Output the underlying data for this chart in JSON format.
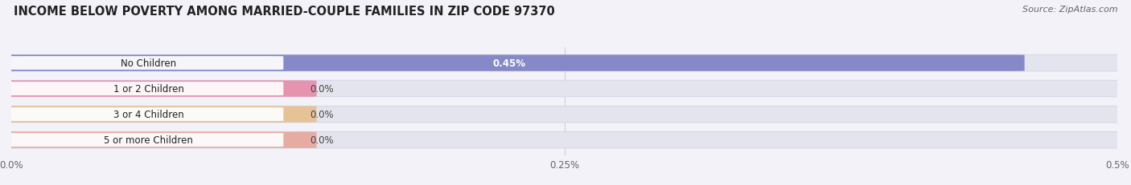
{
  "title": "INCOME BELOW POVERTY AMONG MARRIED-COUPLE FAMILIES IN ZIP CODE 97370",
  "source": "Source: ZipAtlas.com",
  "categories": [
    "No Children",
    "1 or 2 Children",
    "3 or 4 Children",
    "5 or more Children"
  ],
  "values": [
    0.45,
    0.0,
    0.0,
    0.0
  ],
  "display_values": [
    "0.45%",
    "0.0%",
    "0.0%",
    "0.0%"
  ],
  "bar_colors": [
    "#7b7fc4",
    "#e8789a",
    "#e8b87a",
    "#e89a8a"
  ],
  "background_color": "#f2f2f8",
  "bar_bg_color": "#e4e4ee",
  "bar_bg_edge_color": "#d8d8e8",
  "xlim": [
    0,
    0.5
  ],
  "xticks": [
    0.0,
    0.25,
    0.5
  ],
  "xtick_labels": [
    "0.0%",
    "0.25%",
    "0.5%"
  ],
  "zero_bar_width": 0.13,
  "title_fontsize": 10.5,
  "source_fontsize": 8,
  "label_fontsize": 8.5,
  "value_fontsize": 8.5
}
